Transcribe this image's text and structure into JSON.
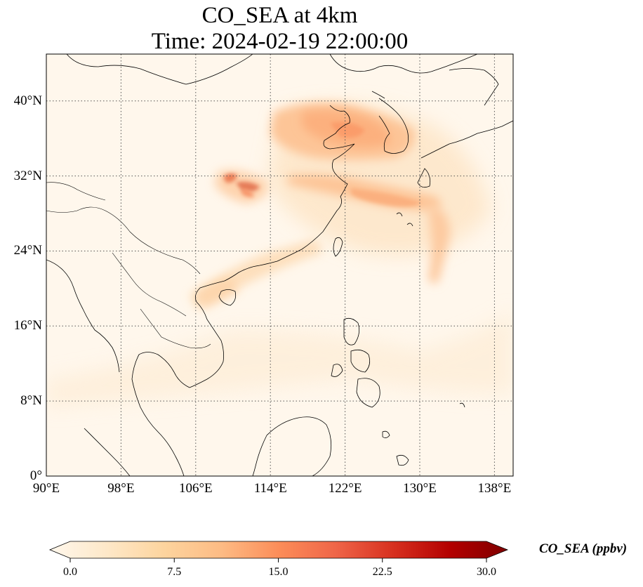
{
  "title": {
    "line1": "CO_SEA at 4km",
    "line2": "Time: 2024-02-19 22:00:00"
  },
  "map": {
    "projection": "PlateCarree",
    "lon_range": [
      90,
      140
    ],
    "lat_range": [
      0,
      45
    ],
    "gridlines": "dotted",
    "colormap": "OrRd",
    "lat_ticks": [
      {
        "value": 40,
        "label": "40°N"
      },
      {
        "value": 32,
        "label": "32°N"
      },
      {
        "value": 24,
        "label": "24°N"
      },
      {
        "value": 16,
        "label": "16°N"
      },
      {
        "value": 8,
        "label": "8°N"
      },
      {
        "value": 0,
        "label": "0°"
      }
    ],
    "lon_ticks": [
      {
        "value": 90,
        "label": "90°E"
      },
      {
        "value": 98,
        "label": "98°E"
      },
      {
        "value": 106,
        "label": "106°E"
      },
      {
        "value": 114,
        "label": "114°E"
      },
      {
        "value": 122,
        "label": "122°E"
      },
      {
        "value": 130,
        "label": "130°E"
      },
      {
        "value": 138,
        "label": "138°E"
      }
    ]
  },
  "colorbar": {
    "label": "CO_SEA (ppbv)",
    "min": 0,
    "max": 30,
    "extend": "both",
    "ticks": [
      {
        "value": 0,
        "label": "0.0"
      },
      {
        "value": 7.5,
        "label": "7.5"
      },
      {
        "value": 15,
        "label": "15.0"
      },
      {
        "value": 22.5,
        "label": "22.5"
      },
      {
        "value": 30,
        "label": "30.0"
      }
    ],
    "colors": [
      "#fff7ec",
      "#fee8c8",
      "#fdd49e",
      "#fdbb84",
      "#fc8d59",
      "#ef6548",
      "#d7301f",
      "#b30000",
      "#7f0000"
    ]
  }
}
